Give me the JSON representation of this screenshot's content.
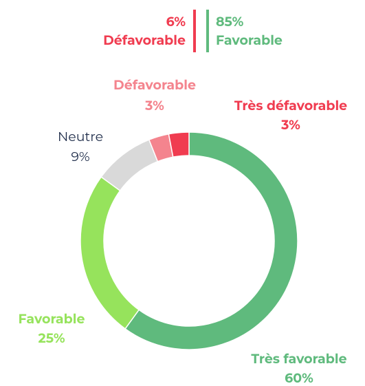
{
  "chart_data": {
    "type": "donut",
    "categories": [
      "Très favorable",
      "Favorable",
      "Neutre",
      "Défavorable",
      "Très défavorable"
    ],
    "values": [
      60,
      25,
      9,
      3,
      3
    ],
    "value_labels": [
      "60%",
      "25%",
      "9%",
      "3%",
      "3%"
    ],
    "colors": [
      "#5fba7d",
      "#96e35c",
      "#d9d9d9",
      "#f4848e",
      "#f03c50"
    ],
    "summary": [
      {
        "name": "Défavorable",
        "value": 6,
        "label": "6%",
        "color": "#f03c50"
      },
      {
        "name": "Favorable",
        "value": 85,
        "label": "85%",
        "color": "#5fba7d"
      }
    ]
  }
}
